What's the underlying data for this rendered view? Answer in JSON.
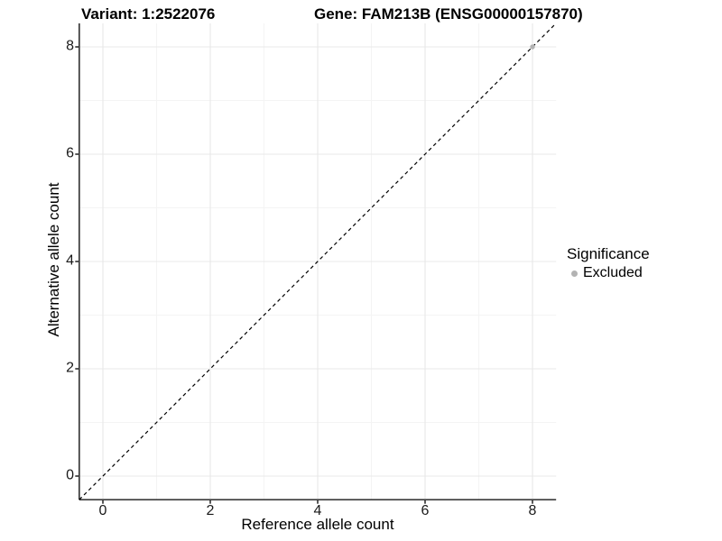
{
  "chart_data": {
    "type": "scatter",
    "title": "Variant: 1:2522076",
    "subtitle": "Gene: FAM213B (ENSG00000157870)",
    "xlabel": "Reference allele count",
    "ylabel": "Alternative allele count",
    "xlim": [
      -0.44,
      8.44
    ],
    "ylim": [
      -0.44,
      8.44
    ],
    "x_ticks": [
      0,
      2,
      4,
      6,
      8
    ],
    "y_ticks": [
      0,
      2,
      4,
      6,
      8
    ],
    "x_minor_ticks": [
      1,
      3,
      5,
      7
    ],
    "y_minor_ticks": [
      1,
      3,
      5,
      7
    ],
    "grid": true,
    "series": [
      {
        "name": "Excluded",
        "color": "#b3b3b3",
        "points": [
          [
            8,
            8
          ]
        ]
      }
    ],
    "reference_line": {
      "type": "identity y=x",
      "style": "dashed",
      "color": "#000000",
      "from": [
        -0.44,
        -0.44
      ],
      "to": [
        8.44,
        8.44
      ]
    },
    "legend": {
      "title": "Significance",
      "position": "right",
      "entries": [
        {
          "label": "Excluded",
          "color": "#b3b3b3"
        }
      ]
    }
  },
  "colors": {
    "background": "#ffffff",
    "major_grid": "#e8e8e8",
    "minor_grid": "#f4f4f4",
    "axis_line": "#3a3a3a",
    "tick_mark": "#3a3a3a",
    "point": "#b3b3b3",
    "dashed_line": "#000000"
  }
}
